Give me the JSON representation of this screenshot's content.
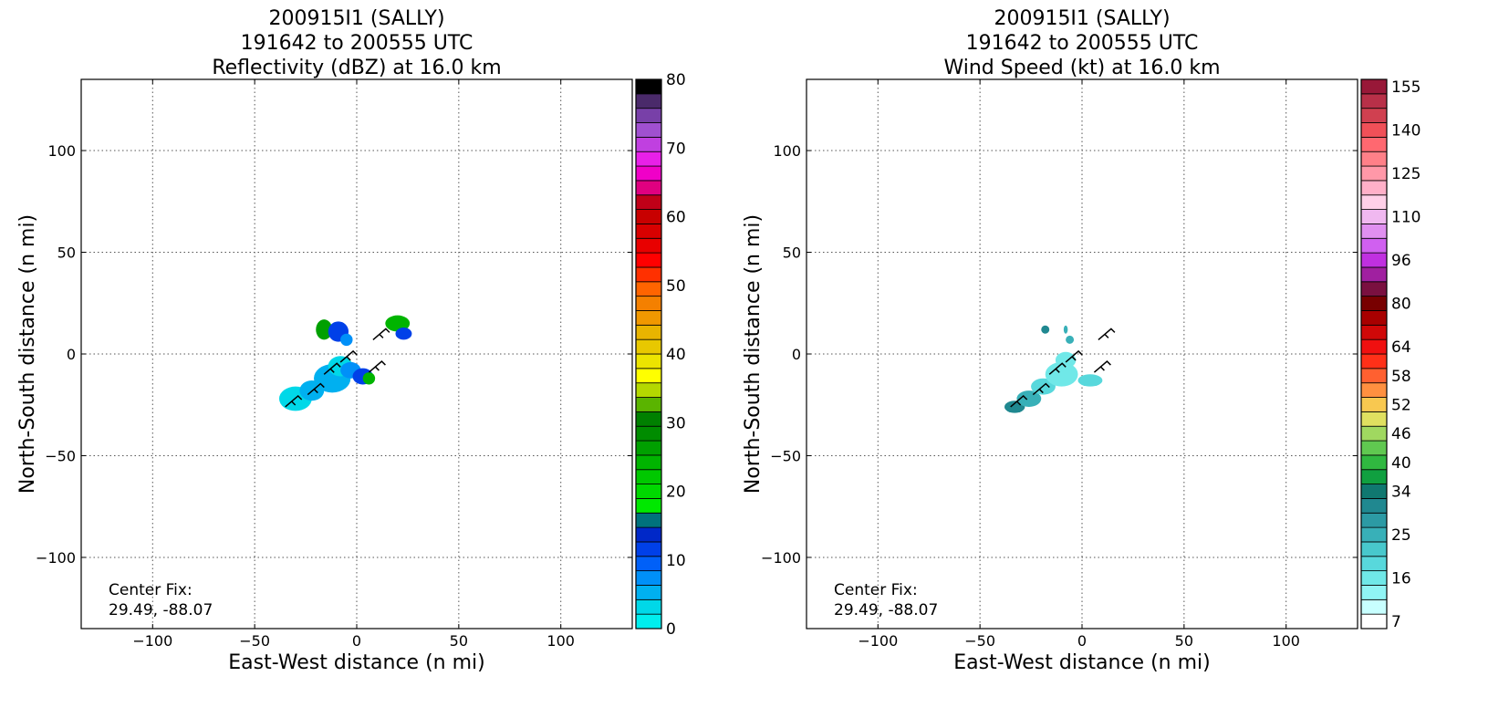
{
  "chart_data": [
    {
      "type": "heatmap",
      "title_lines": [
        "200915I1 (SALLY)",
        "191642 to 200555 UTC",
        "Reflectivity (dBZ) at 16.0 km"
      ],
      "xlabel": "East-West distance (n mi)",
      "ylabel": "North-South distance (n mi)",
      "xlim": [
        -135,
        135
      ],
      "ylim": [
        -135,
        135
      ],
      "xticks": [
        -100,
        -50,
        0,
        50,
        100
      ],
      "yticks": [
        -100,
        -50,
        0,
        50,
        100
      ],
      "xtick_labels": [
        "−100",
        "−50",
        "0",
        "50",
        "100"
      ],
      "ytick_labels": [
        "−100",
        "−50",
        "0",
        "50",
        "100"
      ],
      "grid": true,
      "annotation_lines": [
        "Center Fix:",
        "29.49, -88.07"
      ],
      "colorbar": {
        "min": 0,
        "max": 80,
        "step": 5,
        "tick_values": [
          0,
          10,
          20,
          30,
          40,
          50,
          60,
          70,
          80
        ],
        "tick_labels": [
          "0",
          "10",
          "20",
          "30",
          "40",
          "50",
          "60",
          "70",
          "80"
        ],
        "colors": [
          "#00eeee",
          "#00d8e8",
          "#00b0f0",
          "#0090f8",
          "#0060f8",
          "#0040e8",
          "#0028c8",
          "#00727c",
          "#00e800",
          "#00d800",
          "#00c800",
          "#00b400",
          "#00a000",
          "#008c00",
          "#008000",
          "#5ab400",
          "#b4d800",
          "#ffff00",
          "#ece400",
          "#e8c800",
          "#e8b400",
          "#f09800",
          "#f48000",
          "#ff6400",
          "#ff3000",
          "#ff0000",
          "#e80000",
          "#d80000",
          "#c80000",
          "#c00018",
          "#e00080",
          "#f000c8",
          "#e820e8",
          "#c040e0",
          "#a050d0",
          "#7840a8",
          "#4a2a6a",
          "#000000"
        ]
      },
      "echo_cells": [
        {
          "x": -30,
          "y": -22,
          "rx": 8,
          "ry": 6,
          "color": "#00d8e8"
        },
        {
          "x": -22,
          "y": -18,
          "rx": 6,
          "ry": 5,
          "color": "#00b0f0"
        },
        {
          "x": -12,
          "y": -12,
          "rx": 9,
          "ry": 7,
          "color": "#00b0f0"
        },
        {
          "x": -8,
          "y": -6,
          "rx": 6,
          "ry": 5,
          "color": "#00d8e8"
        },
        {
          "x": -3,
          "y": -8,
          "rx": 5,
          "ry": 4,
          "color": "#0090f8"
        },
        {
          "x": 3,
          "y": -11,
          "rx": 5,
          "ry": 4,
          "color": "#0040e8"
        },
        {
          "x": 6,
          "y": -12,
          "rx": 3,
          "ry": 3,
          "color": "#00b400"
        },
        {
          "x": -16,
          "y": 12,
          "rx": 4,
          "ry": 5,
          "color": "#00a000"
        },
        {
          "x": -9,
          "y": 11,
          "rx": 5,
          "ry": 5,
          "color": "#0040e8"
        },
        {
          "x": -5,
          "y": 7,
          "rx": 3,
          "ry": 3,
          "color": "#0090f8"
        },
        {
          "x": 20,
          "y": 15,
          "rx": 6,
          "ry": 4,
          "color": "#00b400"
        },
        {
          "x": 23,
          "y": 10,
          "rx": 4,
          "ry": 3,
          "color": "#0040e8"
        }
      ]
    },
    {
      "type": "heatmap",
      "title_lines": [
        "200915I1 (SALLY)",
        "191642 to 200555 UTC",
        "Wind Speed (kt) at 16.0 km"
      ],
      "xlabel": "East-West distance (n mi)",
      "ylabel": "North-South distance (n mi)",
      "xlim": [
        -135,
        135
      ],
      "ylim": [
        -135,
        135
      ],
      "xticks": [
        -100,
        -50,
        0,
        50,
        100
      ],
      "yticks": [
        -100,
        -50,
        0,
        50,
        100
      ],
      "xtick_labels": [
        "−100",
        "−50",
        "0",
        "50",
        "100"
      ],
      "ytick_labels": [
        "−100",
        "−50",
        "0",
        "50",
        "100"
      ],
      "grid": true,
      "annotation_lines": [
        "Center Fix:",
        "29.49, -88.07"
      ],
      "colorbar": {
        "tick_labels": [
          "7",
          "16",
          "25",
          "34",
          "40",
          "46",
          "52",
          "58",
          "64",
          "80",
          "96",
          "110",
          "125",
          "140",
          "155"
        ],
        "tick_indices": [
          0,
          3,
          6,
          9,
          11,
          13,
          15,
          17,
          19,
          22,
          25,
          28,
          31,
          34,
          37
        ],
        "colors": [
          "#ffffff",
          "#c8ffff",
          "#90f4f4",
          "#70e8e8",
          "#58d8dc",
          "#48c8cc",
          "#38b0b8",
          "#2c9aa4",
          "#208890",
          "#107870",
          "#10a040",
          "#30b840",
          "#60c850",
          "#a0d860",
          "#e0e060",
          "#f8c850",
          "#ff9040",
          "#ff6030",
          "#ff3018",
          "#f01010",
          "#d00808",
          "#a80000",
          "#780000",
          "#7a1040",
          "#a020a0",
          "#c030e0",
          "#d060f0",
          "#e090f0",
          "#f0b8f0",
          "#ffd0e8",
          "#ffb0c8",
          "#ff98a8",
          "#ff8088",
          "#ff6870",
          "#f05058",
          "#d04050",
          "#b83048",
          "#981838"
        ]
      },
      "echo_cells": [
        {
          "x": -33,
          "y": -26,
          "rx": 5,
          "ry": 3,
          "color": "#208890"
        },
        {
          "x": -26,
          "y": -22,
          "rx": 6,
          "ry": 4,
          "color": "#38b0b8"
        },
        {
          "x": -19,
          "y": -16,
          "rx": 6,
          "ry": 4,
          "color": "#58d8dc"
        },
        {
          "x": -10,
          "y": -10,
          "rx": 8,
          "ry": 6,
          "color": "#70e8e8"
        },
        {
          "x": -8,
          "y": -3,
          "rx": 5,
          "ry": 4,
          "color": "#70e8e8"
        },
        {
          "x": 4,
          "y": -13,
          "rx": 6,
          "ry": 3,
          "color": "#58d8dc"
        },
        {
          "x": -18,
          "y": 12,
          "rx": 2,
          "ry": 2,
          "color": "#208890"
        },
        {
          "x": -8,
          "y": 12,
          "rx": 1,
          "ry": 2,
          "color": "#38b0b8"
        },
        {
          "x": -6,
          "y": 7,
          "rx": 2,
          "ry": 2,
          "color": "#38b0b8"
        }
      ]
    }
  ]
}
